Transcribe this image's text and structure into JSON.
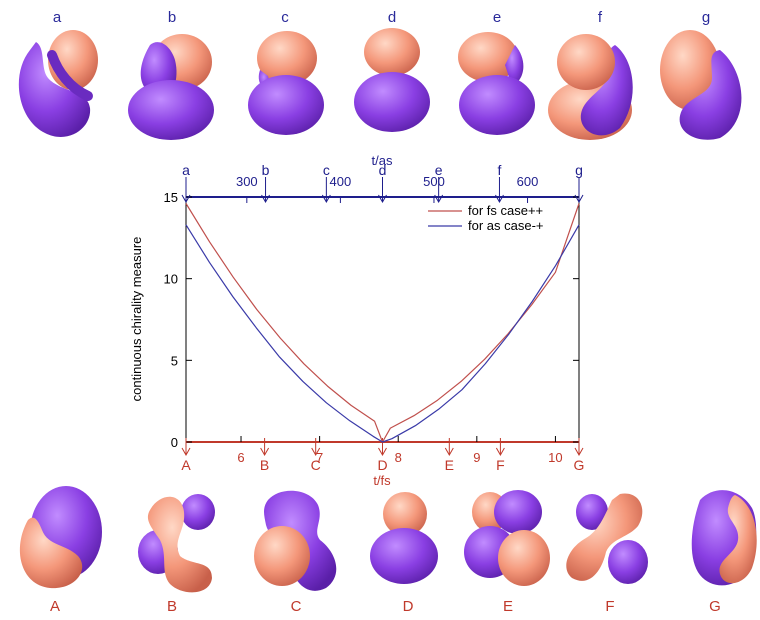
{
  "top_row_labels": [
    "a",
    "b",
    "c",
    "d",
    "e",
    "f",
    "g"
  ],
  "bottom_row_labels": [
    "A",
    "B",
    "C",
    "D",
    "E",
    "F",
    "G"
  ],
  "colors": {
    "lobe_positive": "#f4977a",
    "lobe_negative": "#8a3fe3",
    "fs_series": "#c0504d",
    "as_series": "#3a3aa8",
    "top_axis": "#1e1e8c",
    "bottom_axis": "#c0392b"
  },
  "chart_data": {
    "type": "line",
    "title": "",
    "ylabel": "continuous chirality measure",
    "ylim": [
      0,
      15
    ],
    "yticks": [
      0,
      5,
      10,
      15
    ],
    "x_bottom": {
      "label": "t/fs",
      "lim": [
        5.3,
        10.3
      ],
      "ticks": [
        6,
        7,
        8,
        9,
        10
      ],
      "tick_labels": [
        "6",
        "7",
        "8",
        "9",
        "10"
      ],
      "markers": [
        {
          "label": "A",
          "t": 5.3
        },
        {
          "label": "B",
          "t": 6.3
        },
        {
          "label": "C",
          "t": 6.95
        },
        {
          "label": "D",
          "t": 7.8
        },
        {
          "label": "E",
          "t": 8.65
        },
        {
          "label": "F",
          "t": 9.3
        },
        {
          "label": "G",
          "t": 10.3
        }
      ]
    },
    "x_top": {
      "label": "t/as",
      "lim": [
        235,
        655
      ],
      "ticks": [
        300,
        400,
        500,
        600
      ],
      "tick_labels": [
        "300",
        "400",
        "500",
        "600"
      ],
      "markers": [
        {
          "label": "a",
          "t": 235
        },
        {
          "label": "b",
          "t": 320
        },
        {
          "label": "c",
          "t": 385
        },
        {
          "label": "d",
          "t": 445
        },
        {
          "label": "e",
          "t": 505
        },
        {
          "label": "f",
          "t": 570
        },
        {
          "label": "g",
          "t": 655
        }
      ]
    },
    "legend_position": "top-right",
    "series": [
      {
        "name": "for fs case++",
        "color": "#c0504d",
        "x_axis": "bottom",
        "x": [
          5.3,
          5.6,
          5.9,
          6.2,
          6.5,
          6.8,
          7.1,
          7.4,
          7.7,
          7.8,
          7.9,
          8.2,
          8.5,
          8.8,
          9.1,
          9.4,
          9.7,
          10.0,
          10.3
        ],
        "y": [
          14.6,
          12.25,
          10.09,
          8.12,
          6.36,
          4.79,
          3.42,
          2.24,
          1.27,
          0.0,
          0.85,
          1.61,
          2.56,
          3.71,
          5.07,
          6.64,
          8.41,
          10.39,
          14.6
        ]
      },
      {
        "name": "for as case-+",
        "color": "#3a3aa8",
        "x_axis": "top",
        "x": [
          235,
          260,
          285,
          310,
          335,
          360,
          385,
          410,
          435,
          445,
          455,
          480,
          505,
          530,
          555,
          580,
          605,
          630,
          655
        ],
        "y": [
          13.3,
          11.0,
          8.9,
          7.0,
          5.2,
          3.7,
          2.4,
          1.3,
          0.35,
          0.0,
          0.2,
          1.0,
          2.0,
          3.2,
          4.8,
          6.6,
          8.6,
          10.8,
          13.3
        ]
      }
    ]
  }
}
